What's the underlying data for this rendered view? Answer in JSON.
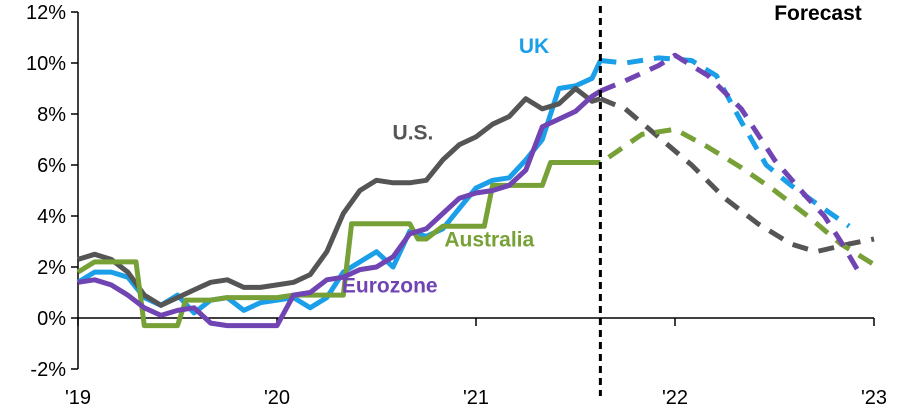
{
  "chart_data": {
    "type": "line",
    "title": "",
    "xlabel": "",
    "ylabel": "",
    "ylim": [
      -2,
      12
    ],
    "yticks": [
      -2,
      0,
      2,
      4,
      6,
      8,
      10,
      12
    ],
    "ytick_labels": [
      "-2%",
      "0%",
      "2%",
      "4%",
      "6%",
      "8%",
      "10%",
      "12%"
    ],
    "x_unit": "months since Jan 2019",
    "xlim": [
      0,
      48
    ],
    "xticks": [
      0,
      12,
      24,
      36,
      48
    ],
    "xtick_labels": [
      "'19",
      "'20",
      "'21",
      "'22",
      "'23"
    ],
    "grid": false,
    "forecast_start": 31.5,
    "forecast_label": "Forecast",
    "series": [
      {
        "name": "UK",
        "color": "#1a9fe8",
        "label_at": [
          27.5,
          10.4
        ],
        "actual": {
          "x": [
            0,
            1,
            2,
            3,
            4,
            5,
            6,
            7,
            8,
            9,
            10,
            11,
            12,
            13,
            14,
            15,
            16,
            17,
            18,
            19,
            20,
            21,
            22,
            23,
            24,
            25,
            26,
            27,
            28,
            29,
            30,
            31,
            31.5
          ],
          "y": [
            1.4,
            1.8,
            1.8,
            1.6,
            0.8,
            0.5,
            0.9,
            0.2,
            0.7,
            0.8,
            0.3,
            0.6,
            0.7,
            0.8,
            0.4,
            0.8,
            1.8,
            2.2,
            2.6,
            2.0,
            3.4,
            3.2,
            3.5,
            4.3,
            5.1,
            5.4,
            5.5,
            6.2,
            7.0,
            9.0,
            9.1,
            9.4,
            10.1
          ]
        },
        "forecast": {
          "x": [
            31.5,
            33,
            35,
            37,
            38.5,
            40,
            41.5,
            43,
            44.5,
            46.5
          ],
          "y": [
            10.1,
            10.0,
            10.2,
            10.1,
            9.5,
            7.7,
            6.0,
            5.2,
            4.5,
            3.6
          ]
        }
      },
      {
        "name": "U.S.",
        "color": "#555555",
        "label_at": [
          20.2,
          7.0
        ],
        "actual": {
          "x": [
            0,
            1,
            2,
            3,
            4,
            5,
            6,
            7,
            8,
            9,
            10,
            11,
            12,
            13,
            14,
            15,
            16,
            17,
            18,
            19,
            20,
            21,
            22,
            23,
            24,
            25,
            26,
            27,
            28,
            29,
            30,
            31,
            31.5
          ],
          "y": [
            2.3,
            2.5,
            2.3,
            1.8,
            0.9,
            0.5,
            0.8,
            1.1,
            1.4,
            1.5,
            1.2,
            1.2,
            1.3,
            1.4,
            1.7,
            2.6,
            4.1,
            5.0,
            5.4,
            5.3,
            5.3,
            5.4,
            6.2,
            6.8,
            7.1,
            7.6,
            7.9,
            8.6,
            8.2,
            8.4,
            9.0,
            8.5,
            8.6
          ]
        },
        "forecast": {
          "x": [
            31.5,
            33,
            35,
            37,
            39,
            41,
            43,
            44.5,
            46.5,
            48
          ],
          "y": [
            8.6,
            8.2,
            7.1,
            6.0,
            4.7,
            3.7,
            2.9,
            2.6,
            2.9,
            3.1
          ]
        }
      },
      {
        "name": "Australia",
        "color": "#77a037",
        "label_at": [
          24.8,
          2.8
        ],
        "actual": {
          "x": [
            0,
            1,
            2,
            3,
            3.5,
            4,
            5,
            6,
            6.5,
            7,
            8,
            9,
            10,
            11,
            12,
            13,
            14,
            15,
            16,
            16.5,
            17,
            18,
            19,
            20,
            20.5,
            21,
            22,
            23,
            24,
            24.5,
            25,
            26,
            27,
            28,
            28.5,
            29,
            30,
            31,
            31.5
          ],
          "y": [
            1.8,
            2.2,
            2.2,
            2.2,
            2.2,
            -0.3,
            -0.3,
            -0.3,
            0.7,
            0.7,
            0.7,
            0.8,
            0.8,
            0.8,
            0.8,
            0.9,
            0.9,
            0.9,
            0.9,
            3.7,
            3.7,
            3.7,
            3.7,
            3.7,
            3.1,
            3.1,
            3.6,
            3.6,
            3.6,
            3.6,
            5.2,
            5.2,
            5.2,
            5.2,
            6.1,
            6.1,
            6.1,
            6.1,
            6.1
          ]
        },
        "forecast": {
          "x": [
            32,
            34,
            36,
            38,
            40,
            42,
            44,
            46,
            48
          ],
          "y": [
            6.3,
            7.2,
            7.4,
            6.7,
            5.9,
            5.0,
            4.0,
            2.9,
            2.1
          ]
        }
      },
      {
        "name": "Eurozone",
        "color": "#7044b2",
        "label_at": [
          18.8,
          1.0
        ],
        "actual": {
          "x": [
            0,
            1,
            2,
            3,
            4,
            5,
            6,
            7,
            8,
            9,
            10,
            11,
            12,
            13,
            14,
            15,
            16,
            17,
            18,
            19,
            20,
            21,
            22,
            23,
            24,
            25,
            26,
            27,
            28,
            29,
            30,
            31,
            31.5
          ],
          "y": [
            1.4,
            1.5,
            1.3,
            0.9,
            0.4,
            0.1,
            0.3,
            0.4,
            -0.2,
            -0.3,
            -0.3,
            -0.3,
            -0.3,
            0.9,
            1.0,
            1.5,
            1.6,
            1.9,
            2.0,
            2.4,
            3.3,
            3.5,
            4.1,
            4.7,
            4.9,
            5.0,
            5.2,
            5.8,
            7.5,
            7.8,
            8.1,
            8.7,
            8.9
          ]
        },
        "forecast": {
          "x": [
            31.5,
            33,
            35,
            36,
            38,
            40,
            42,
            44,
            45,
            46,
            47
          ],
          "y": [
            8.9,
            9.3,
            9.9,
            10.3,
            9.5,
            8.2,
            6.2,
            4.7,
            4.0,
            3.0,
            1.9
          ]
        }
      }
    ]
  }
}
